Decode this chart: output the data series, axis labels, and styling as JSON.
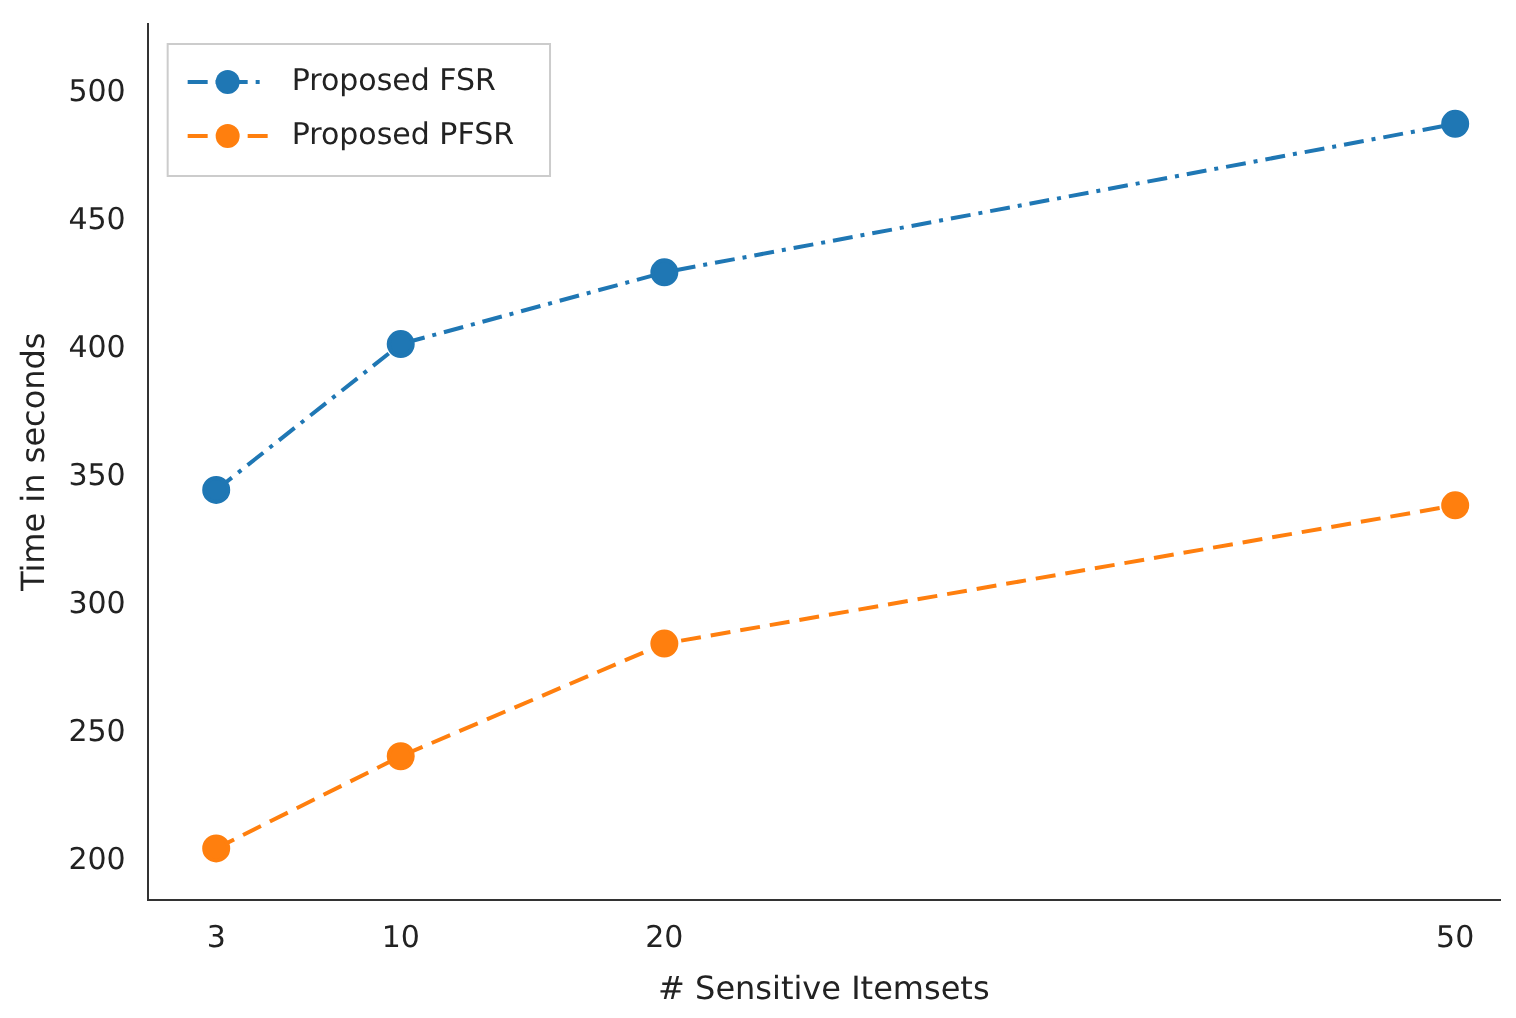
{
  "chart_data": {
    "type": "line",
    "xlabel": "# Sensitive Itemsets",
    "ylabel": "Time in seconds",
    "x": [
      3,
      10,
      20,
      50
    ],
    "series": [
      {
        "name": "Proposed FSR",
        "color": "#1f77b4",
        "values": [
          345,
          402,
          430,
          488
        ],
        "line_style": "dashdot"
      },
      {
        "name": "Proposed PFSR",
        "color": "#ff7f0e",
        "values": [
          205,
          241,
          285,
          339
        ],
        "line_style": "dashed"
      }
    ],
    "xlim": [
      0.4,
      51.7
    ],
    "xticks": [
      3,
      10,
      20,
      50
    ],
    "ylim": [
      185,
      527
    ],
    "yticks": [
      200,
      250,
      300,
      350,
      400,
      450,
      500
    ],
    "legend": "top left",
    "marker": "circle",
    "grid": false
  }
}
